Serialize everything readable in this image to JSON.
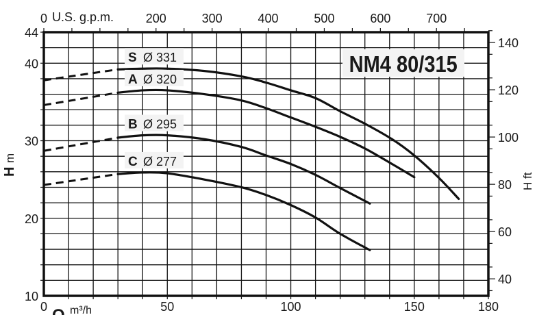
{
  "chart_data": {
    "type": "line",
    "title": "NM4 80/315",
    "xlabel": "Q",
    "xunit": "m³/h",
    "ylabel": "H",
    "yunit": "m",
    "xlim": [
      0,
      180
    ],
    "ylim": [
      10,
      44
    ],
    "x_ticks": [
      "0",
      "50",
      "100",
      "150",
      "180"
    ],
    "y_ticks": [
      "10",
      "20",
      "30",
      "40",
      "44"
    ],
    "top_axis": {
      "label": "U.S. g.p.m.",
      "ticks": [
        "0",
        "200",
        "300",
        "400",
        "500",
        "600",
        "700"
      ],
      "values": [
        0,
        200,
        300,
        400,
        500,
        600,
        700
      ]
    },
    "right_axis": {
      "label": "H ft",
      "ticks": [
        "40",
        "60",
        "80",
        "100",
        "120",
        "140"
      ],
      "values": [
        40,
        60,
        80,
        100,
        120,
        140
      ]
    },
    "grid": true,
    "series": [
      {
        "name": "S",
        "diameter": "Ø 331",
        "dashed": [
          [
            0,
            37.8
          ],
          [
            30,
            39.2
          ]
        ],
        "values": [
          [
            30,
            39.2
          ],
          [
            40,
            39.3
          ],
          [
            50,
            39.3
          ],
          [
            65,
            39.0
          ],
          [
            80,
            38.3
          ],
          [
            90,
            37.5
          ],
          [
            100,
            36.5
          ],
          [
            110,
            35.5
          ],
          [
            120,
            33.8
          ],
          [
            130,
            32.2
          ],
          [
            141,
            30.2
          ],
          [
            150,
            28.1
          ],
          [
            160,
            25.2
          ],
          [
            168,
            22.5
          ]
        ]
      },
      {
        "name": "A",
        "diameter": "Ø 320",
        "dashed": [
          [
            0,
            34.6
          ],
          [
            30,
            36.2
          ]
        ],
        "values": [
          [
            30,
            36.2
          ],
          [
            40,
            36.5
          ],
          [
            50,
            36.5
          ],
          [
            65,
            36.0
          ],
          [
            80,
            35.2
          ],
          [
            90,
            34.2
          ],
          [
            100,
            33.0
          ],
          [
            110,
            31.8
          ],
          [
            120,
            30.5
          ],
          [
            130,
            29.0
          ],
          [
            141,
            27.0
          ],
          [
            150,
            25.3
          ]
        ]
      },
      {
        "name": "B",
        "diameter": "Ø 295",
        "dashed": [
          [
            0,
            28.7
          ],
          [
            30,
            30.4
          ]
        ],
        "values": [
          [
            30,
            30.4
          ],
          [
            40,
            30.7
          ],
          [
            50,
            30.7
          ],
          [
            65,
            30.2
          ],
          [
            80,
            29.2
          ],
          [
            90,
            28.1
          ],
          [
            100,
            27.0
          ],
          [
            110,
            25.6
          ],
          [
            120,
            23.9
          ],
          [
            132,
            21.9
          ]
        ]
      },
      {
        "name": "C",
        "diameter": "Ø 277",
        "dashed": [
          [
            0,
            24.3
          ],
          [
            30,
            25.7
          ]
        ],
        "values": [
          [
            30,
            25.7
          ],
          [
            40,
            25.9
          ],
          [
            50,
            25.8
          ],
          [
            65,
            25.0
          ],
          [
            80,
            24.0
          ],
          [
            90,
            23.0
          ],
          [
            100,
            21.7
          ],
          [
            110,
            20.1
          ],
          [
            120,
            18.0
          ],
          [
            132,
            15.9
          ]
        ]
      }
    ]
  }
}
